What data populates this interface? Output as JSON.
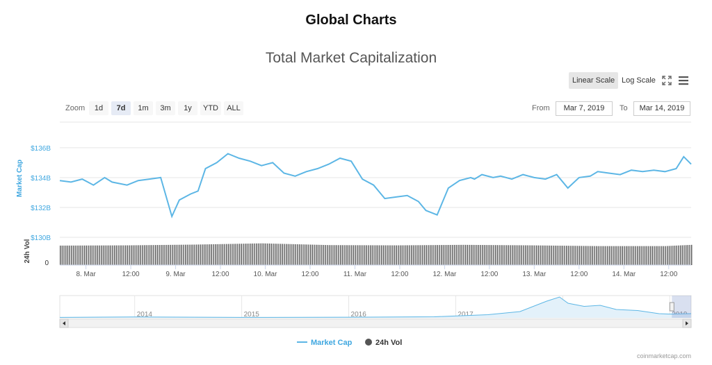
{
  "header": {
    "title": "Global Charts"
  },
  "toolbar": {
    "linear_label": "Linear Scale",
    "log_label": "Log Scale",
    "zoom_label": "Zoom",
    "zoom_options": [
      "1d",
      "7d",
      "1m",
      "3m",
      "1y",
      "YTD",
      "ALL"
    ],
    "zoom_selected": "7d",
    "from_label": "From",
    "from_value": "Mar 7, 2019",
    "to_label": "To",
    "to_value": "Mar 14, 2019"
  },
  "icons": {
    "fullscreen": "fullscreen-icon",
    "menu": "hamburger-menu-icon"
  },
  "colors": {
    "market_cap": "#5cb6e5",
    "volume": "#555555",
    "accent": "#3fa7e0"
  },
  "credits": "coinmarketcap.com",
  "chart_data": {
    "type": "line",
    "title": "Total Market Capitalization",
    "ylabel": "Market Cap",
    "ylabel2": "24h Vol",
    "yticks": [
      "$130B",
      "$132B",
      "$134B",
      "$136B"
    ],
    "ytick_values": [
      130,
      132,
      134,
      136
    ],
    "ylim": [
      130,
      136.6
    ],
    "vol_yticks": [
      "0"
    ],
    "xticks": [
      "8. Mar",
      "12:00",
      "9. Mar",
      "12:00",
      "10. Mar",
      "12:00",
      "11. Mar",
      "12:00",
      "12. Mar",
      "12:00",
      "13. Mar",
      "12:00",
      "14. Mar",
      "12:00"
    ],
    "xtick_hours": [
      24,
      36,
      48,
      60,
      72,
      84,
      96,
      108,
      120,
      132,
      144,
      156,
      168,
      180
    ],
    "xlim_hours": [
      17,
      186
    ],
    "x_unit": "hours after Mar 7, 2019 00:00",
    "series": [
      {
        "name": "Market Cap",
        "unit": "$B",
        "x": [
          17,
          20,
          23,
          26,
          29,
          31,
          35,
          38,
          41,
          44,
          47,
          49,
          52,
          54,
          56,
          59,
          62,
          65,
          68,
          71,
          74,
          77,
          80,
          83,
          86,
          89,
          92,
          95,
          98,
          101,
          104,
          107,
          110,
          113,
          115,
          118,
          121,
          124,
          127,
          128,
          130,
          133,
          135,
          138,
          141,
          144,
          147,
          150,
          153,
          156,
          159,
          161,
          164,
          167,
          170,
          173,
          176,
          179,
          182,
          184,
          186
        ],
        "values": [
          133.8,
          133.7,
          133.9,
          133.5,
          134.0,
          133.7,
          133.5,
          133.8,
          133.9,
          134.0,
          131.4,
          132.5,
          132.9,
          133.1,
          134.6,
          135.0,
          135.6,
          135.3,
          135.1,
          134.8,
          135.0,
          134.3,
          134.1,
          134.4,
          134.6,
          134.9,
          135.3,
          135.1,
          133.9,
          133.5,
          132.6,
          132.7,
          132.8,
          132.4,
          131.8,
          131.5,
          133.3,
          133.8,
          134.0,
          133.9,
          134.2,
          134.0,
          134.1,
          133.9,
          134.2,
          134.0,
          133.9,
          134.2,
          133.3,
          134.0,
          134.1,
          134.4,
          134.3,
          134.2,
          134.5,
          134.4,
          134.5,
          134.4,
          134.6,
          135.4,
          134.9
        ]
      },
      {
        "name": "24h Vol",
        "x": [
          17,
          35,
          53,
          71,
          89,
          107,
          125,
          143,
          161,
          179,
          186
        ],
        "values": [
          0.78,
          0.79,
          0.82,
          0.87,
          0.8,
          0.79,
          0.81,
          0.79,
          0.76,
          0.76,
          0.81
        ]
      }
    ],
    "navigator": {
      "labels": [
        "2014",
        "2015",
        "2016",
        "2017",
        "2018",
        "2019"
      ],
      "label_years": [
        2014,
        2015,
        2016,
        2017,
        2018,
        2019
      ],
      "xlim_years": [
        2013.3,
        2019.2
      ],
      "x": [
        2013.3,
        2014.0,
        2015.0,
        2016.0,
        2016.8,
        2017.3,
        2017.6,
        2017.85,
        2017.97,
        2018.05,
        2018.2,
        2018.35,
        2018.5,
        2018.7,
        2018.9,
        2019.0,
        2019.2
      ],
      "values": [
        0.02,
        0.04,
        0.02,
        0.03,
        0.05,
        0.15,
        0.3,
        0.8,
        1.0,
        0.7,
        0.55,
        0.6,
        0.4,
        0.35,
        0.2,
        0.18,
        0.2
      ]
    },
    "legend": [
      "Market Cap",
      "24h Vol"
    ],
    "legend_position": "bottom-center",
    "grid": true
  }
}
